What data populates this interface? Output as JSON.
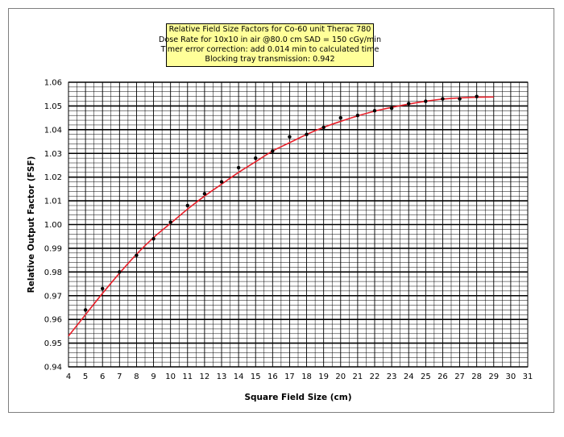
{
  "chart_data": {
    "type": "scatter",
    "title_lines": [
      "Relative Field Size Factors for Co-60 unit Therac 780",
      "Dose Rate for 10x10 in air @80.0 cm SAD = 150 cGy/min",
      "Timer error correction: add 0.014 min to calculated time",
      "Blocking tray transmission: 0.942"
    ],
    "xlabel": "Square Field Size (cm)",
    "ylabel": "Relative Output Factor (FSF)",
    "xlim": [
      4,
      31
    ],
    "ylim": [
      0.94,
      1.06
    ],
    "x_ticks": [
      4,
      5,
      6,
      7,
      8,
      9,
      10,
      11,
      12,
      13,
      14,
      15,
      16,
      17,
      18,
      19,
      20,
      21,
      22,
      23,
      24,
      25,
      26,
      27,
      28,
      29,
      30,
      31
    ],
    "y_ticks": [
      "0.94",
      "0.95",
      "0.96",
      "0.97",
      "0.98",
      "0.99",
      "1.00",
      "1.01",
      "1.02",
      "1.03",
      "1.04",
      "1.05",
      "1.06"
    ],
    "grid": true,
    "series": [
      {
        "kind": "points",
        "color": "#000000",
        "x": [
          5,
          6,
          7,
          8,
          9,
          10,
          11,
          12,
          13,
          14,
          15,
          16,
          17,
          18,
          19,
          20,
          21,
          22,
          23,
          24,
          25,
          26,
          27,
          28
        ],
        "y": [
          0.964,
          0.973,
          0.98,
          0.987,
          0.994,
          1.001,
          1.008,
          1.013,
          1.018,
          1.024,
          1.028,
          1.031,
          1.037,
          1.038,
          1.041,
          1.045,
          1.046,
          1.048,
          1.049,
          1.051,
          1.052,
          1.053,
          1.053,
          1.054
        ]
      },
      {
        "kind": "fit-line",
        "color": "#e8202a",
        "x": [
          4,
          5,
          6,
          7,
          8,
          9,
          10,
          11,
          12,
          13,
          14,
          15,
          16,
          17,
          18,
          19,
          20,
          21,
          22,
          23,
          24,
          25,
          26,
          27,
          28,
          29
        ],
        "y": [
          0.953,
          0.962,
          0.971,
          0.9795,
          0.9875,
          0.9945,
          1.0005,
          1.0065,
          1.012,
          1.017,
          1.022,
          1.0265,
          1.031,
          1.0345,
          1.038,
          1.041,
          1.0435,
          1.0458,
          1.0478,
          1.0494,
          1.0508,
          1.052,
          1.0529,
          1.0534,
          1.0537,
          1.0538
        ]
      }
    ]
  }
}
